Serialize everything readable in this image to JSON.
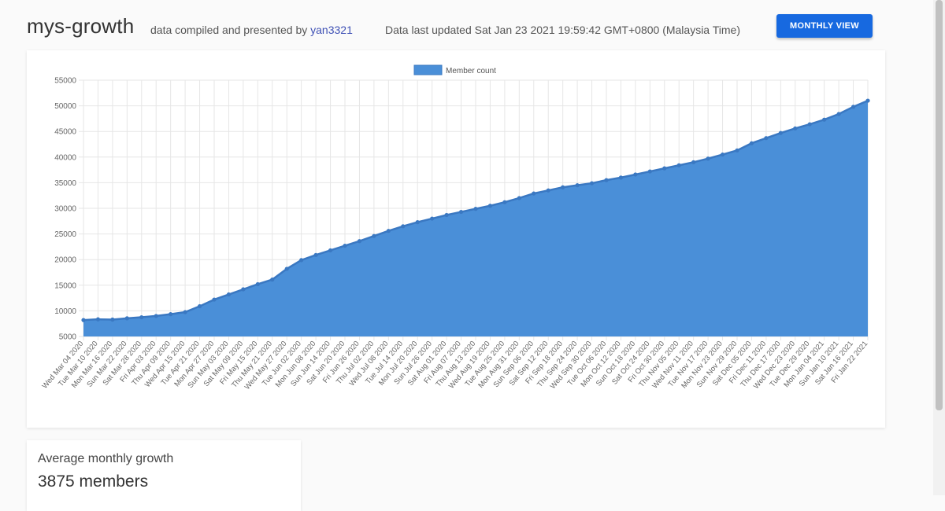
{
  "header": {
    "title": "mys-growth",
    "byline_prefix": "data compiled and presented by",
    "author": "yan3321",
    "updated": "Data last updated Sat Jan 23 2021 19:59:42 GMT+0800 (Malaysia Time)",
    "view_button": "MONTHLY VIEW"
  },
  "summary": {
    "label": "Average monthly growth",
    "value": "3875 members"
  },
  "colors": {
    "fill": "#4a8fd8",
    "line": "#3a78c2",
    "button": "#1769e0",
    "link": "#3f51b5"
  },
  "chart_data": {
    "type": "area",
    "legend": "Member count",
    "legend_position": "top-center",
    "grid": true,
    "ylim": [
      5000,
      55000
    ],
    "yticks": [
      5000,
      10000,
      15000,
      20000,
      25000,
      30000,
      35000,
      40000,
      45000,
      50000,
      55000
    ],
    "x_tick_labels": [
      "Wed Mar 04 2020",
      "Tue Mar 10 2020",
      "Mon Mar 16 2020",
      "Sun Mar 22 2020",
      "Sat Mar 28 2020",
      "Fri Apr 03 2020",
      "Thu Apr 09 2020",
      "Wed Apr 15 2020",
      "Tue Apr 21 2020",
      "Mon Apr 27 2020",
      "Sun May 03 2020",
      "Sat May 09 2020",
      "Fri May 15 2020",
      "Thu May 21 2020",
      "Wed May 27 2020",
      "Tue Jun 02 2020",
      "Mon Jun 08 2020",
      "Sun Jun 14 2020",
      "Sat Jun 20 2020",
      "Fri Jun 26 2020",
      "Thu Jul 02 2020",
      "Wed Jul 08 2020",
      "Tue Jul 14 2020",
      "Mon Jul 20 2020",
      "Sun Jul 26 2020",
      "Sat Aug 01 2020",
      "Fri Aug 07 2020",
      "Thu Aug 13 2020",
      "Wed Aug 19 2020",
      "Tue Aug 25 2020",
      "Mon Aug 31 2020",
      "Sun Sep 06 2020",
      "Sat Sep 12 2020",
      "Fri Sep 18 2020",
      "Thu Sep 24 2020",
      "Wed Sep 30 2020",
      "Tue Oct 06 2020",
      "Mon Oct 12 2020",
      "Sun Oct 18 2020",
      "Sat Oct 24 2020",
      "Fri Oct 30 2020",
      "Thu Nov 05 2020",
      "Wed Nov 11 2020",
      "Tue Nov 17 2020",
      "Mon Nov 23 2020",
      "Sun Nov 29 2020",
      "Sat Dec 05 2020",
      "Fri Dec 11 2020",
      "Thu Dec 17 2020",
      "Wed Dec 23 2020",
      "Tue Dec 29 2020",
      "Mon Jan 04 2021",
      "Sun Jan 10 2021",
      "Sat Jan 16 2021",
      "Fri Jan 22 2021"
    ],
    "series": [
      {
        "name": "Member count",
        "points": [
          {
            "x": "Wed Mar 04 2020",
            "y": 8200
          },
          {
            "x": "Tue Mar 10 2020",
            "y": 8350
          },
          {
            "x": "Mon Mar 16 2020",
            "y": 8300
          },
          {
            "x": "Sun Mar 22 2020",
            "y": 8550
          },
          {
            "x": "Sat Mar 28 2020",
            "y": 8750
          },
          {
            "x": "Fri Apr 03 2020",
            "y": 9000
          },
          {
            "x": "Thu Apr 09 2020",
            "y": 9350
          },
          {
            "x": "Wed Apr 15 2020",
            "y": 9750
          },
          {
            "x": "Tue Apr 21 2020",
            "y": 10900
          },
          {
            "x": "Mon Apr 27 2020",
            "y": 12200
          },
          {
            "x": "Sun May 03 2020",
            "y": 13200
          },
          {
            "x": "Sat May 09 2020",
            "y": 14200
          },
          {
            "x": "Fri May 15 2020",
            "y": 15200
          },
          {
            "x": "Thu May 21 2020",
            "y": 16100
          },
          {
            "x": "Wed May 27 2020",
            "y": 18200
          },
          {
            "x": "Tue Jun 02 2020",
            "y": 19900
          },
          {
            "x": "Mon Jun 08 2020",
            "y": 20900
          },
          {
            "x": "Sun Jun 14 2020",
            "y": 21800
          },
          {
            "x": "Sat Jun 20 2020",
            "y": 22700
          },
          {
            "x": "Fri Jun 26 2020",
            "y": 23600
          },
          {
            "x": "Thu Jul 02 2020",
            "y": 24600
          },
          {
            "x": "Wed Jul 08 2020",
            "y": 25600
          },
          {
            "x": "Tue Jul 14 2020",
            "y": 26500
          },
          {
            "x": "Mon Jul 20 2020",
            "y": 27300
          },
          {
            "x": "Sun Jul 26 2020",
            "y": 28000
          },
          {
            "x": "Sat Aug 01 2020",
            "y": 28700
          },
          {
            "x": "Fri Aug 07 2020",
            "y": 29300
          },
          {
            "x": "Thu Aug 13 2020",
            "y": 29900
          },
          {
            "x": "Wed Aug 19 2020",
            "y": 30500
          },
          {
            "x": "Tue Aug 25 2020",
            "y": 31200
          },
          {
            "x": "Mon Aug 31 2020",
            "y": 32000
          },
          {
            "x": "Sun Sep 06 2020",
            "y": 32900
          },
          {
            "x": "Sat Sep 12 2020",
            "y": 33500
          },
          {
            "x": "Fri Sep 18 2020",
            "y": 34100
          },
          {
            "x": "Thu Sep 24 2020",
            "y": 34500
          },
          {
            "x": "Wed Sep 30 2020",
            "y": 34900
          },
          {
            "x": "Tue Oct 06 2020",
            "y": 35500
          },
          {
            "x": "Mon Oct 12 2020",
            "y": 36000
          },
          {
            "x": "Sun Oct 18 2020",
            "y": 36600
          },
          {
            "x": "Sat Oct 24 2020",
            "y": 37200
          },
          {
            "x": "Fri Oct 30 2020",
            "y": 37800
          },
          {
            "x": "Thu Nov 05 2020",
            "y": 38400
          },
          {
            "x": "Wed Nov 11 2020",
            "y": 39000
          },
          {
            "x": "Tue Nov 17 2020",
            "y": 39700
          },
          {
            "x": "Mon Nov 23 2020",
            "y": 40500
          },
          {
            "x": "Sun Nov 29 2020",
            "y": 41300
          },
          {
            "x": "Sat Dec 05 2020",
            "y": 42700
          },
          {
            "x": "Fri Dec 11 2020",
            "y": 43700
          },
          {
            "x": "Thu Dec 17 2020",
            "y": 44700
          },
          {
            "x": "Wed Dec 23 2020",
            "y": 45600
          },
          {
            "x": "Tue Dec 29 2020",
            "y": 46400
          },
          {
            "x": "Mon Jan 04 2021",
            "y": 47300
          },
          {
            "x": "Sun Jan 10 2021",
            "y": 48400
          },
          {
            "x": "Sat Jan 16 2021",
            "y": 49800
          },
          {
            "x": "Fri Jan 22 2021",
            "y": 51000
          }
        ]
      }
    ]
  }
}
